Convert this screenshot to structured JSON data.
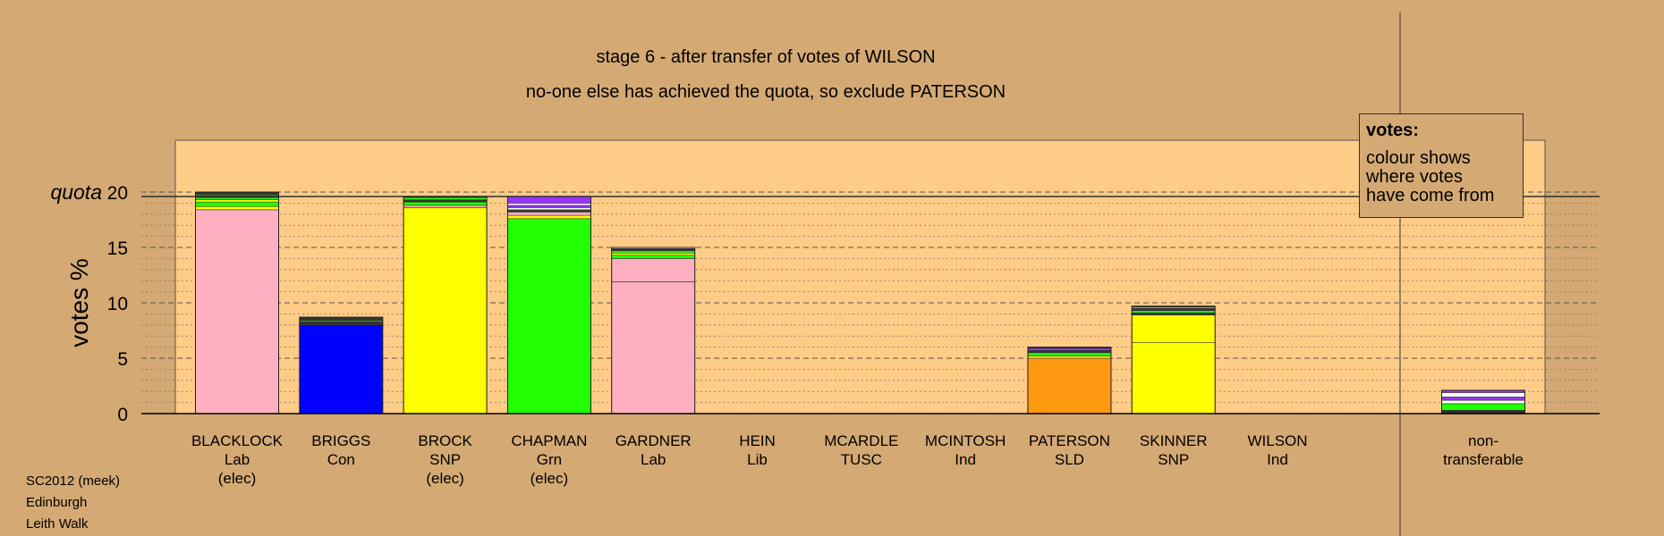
{
  "title": "stage 6 - after transfer of votes of WILSON",
  "subtitle": "no-one else has achieved the quota, so exclude PATERSON",
  "footer": [
    "SC2012 (meek)",
    "Edinburgh",
    "Leith Walk"
  ],
  "legend": {
    "title": "votes:",
    "body": "colour shows\nwhere votes\nhave come from"
  },
  "quota_label": "quota",
  "colors": {
    "background": "#D4A973",
    "plot_area": "#FFCC88",
    "Lab": "#FFB0C0",
    "Con": "#0000FF",
    "SNP": "#FFFF00",
    "Grn": "#22FF00",
    "SLD": "#FF9910",
    "purple": "#9933FF",
    "dark": "#333333",
    "white": "#FFFFFF"
  },
  "chart_data": {
    "type": "bar",
    "stacked": true,
    "ylabel": "votes %",
    "ylim": [
      0,
      20
    ],
    "yticks": [
      0,
      5,
      10,
      15,
      20
    ],
    "quota": 19.6,
    "grid": "dotted minor lines every 1%, dashed major lines every 5%",
    "candidates": [
      {
        "name": "BLACKLOCK",
        "party": "Lab",
        "note": "(elec)",
        "segments": [
          {
            "color": "#FFB0C0",
            "value": 18.4
          },
          {
            "color": "#FFFF00",
            "value": 0.3
          },
          {
            "color": "#22FF00",
            "value": 0.4
          },
          {
            "color": "#FFFF00",
            "value": 0.2
          },
          {
            "color": "#22FF00",
            "value": 0.2
          },
          {
            "color": "#333333",
            "value": 0.2
          },
          {
            "color": "#22FF00",
            "value": 0.1
          },
          {
            "color": "#333333",
            "value": 0.2
          }
        ]
      },
      {
        "name": "BRIGGS",
        "party": "Con",
        "note": "",
        "segments": [
          {
            "color": "#0000FF",
            "value": 8.0
          },
          {
            "color": "#333333",
            "value": 0.3
          },
          {
            "color": "#22FF00",
            "value": 0.1
          },
          {
            "color": "#333333",
            "value": 0.3
          }
        ]
      },
      {
        "name": "BROCK",
        "party": "SNP",
        "note": "(elec)",
        "segments": [
          {
            "color": "#FFFF00",
            "value": 18.6
          },
          {
            "color": "#FFB0C0",
            "value": 0.2
          },
          {
            "color": "#22FF00",
            "value": 0.3
          },
          {
            "color": "#333333",
            "value": 0.2
          },
          {
            "color": "#22FF00",
            "value": 0.2
          },
          {
            "color": "#333333",
            "value": 0.1
          }
        ]
      },
      {
        "name": "CHAPMAN",
        "party": "Grn",
        "note": "(elec)",
        "segments": [
          {
            "color": "#22FF00",
            "value": 17.6
          },
          {
            "color": "#FFFF00",
            "value": 0.3
          },
          {
            "color": "#FFB0C0",
            "value": 0.3
          },
          {
            "color": "#333333",
            "value": 0.2
          },
          {
            "color": "#FFFFFF",
            "value": 0.2
          },
          {
            "color": "#9933FF",
            "value": 0.2
          },
          {
            "color": "#FFFFFF",
            "value": 0.2
          },
          {
            "color": "#9933FF",
            "value": 0.6
          }
        ]
      },
      {
        "name": "GARDNER",
        "party": "Lab",
        "note": "",
        "segments": [
          {
            "color": "#FFB0C0",
            "value": 11.9
          },
          {
            "color": "#FFB0C0",
            "value": 2.1
          },
          {
            "color": "#22FF00",
            "value": 0.3
          },
          {
            "color": "#FFFF00",
            "value": 0.2
          },
          {
            "color": "#22FF00",
            "value": 0.2
          },
          {
            "color": "#333333",
            "value": 0.2
          },
          {
            "color": "#FFFFFF",
            "value": 0.1
          }
        ]
      },
      {
        "name": "HEIN",
        "party": "Lib",
        "note": "",
        "segments": []
      },
      {
        "name": "MCARDLE",
        "party": "TUSC",
        "note": "",
        "segments": []
      },
      {
        "name": "MCINTOSH",
        "party": "Ind",
        "note": "",
        "segments": []
      },
      {
        "name": "PATERSON",
        "party": "SLD",
        "note": "",
        "segments": [
          {
            "color": "#FF9910",
            "value": 5.0
          },
          {
            "color": "#FFFF00",
            "value": 0.2
          },
          {
            "color": "#22FF00",
            "value": 0.3
          },
          {
            "color": "#333333",
            "value": 0.2
          },
          {
            "color": "#9933FF",
            "value": 0.2
          },
          {
            "color": "#333333",
            "value": 0.1
          }
        ]
      },
      {
        "name": "SKINNER",
        "party": "SNP",
        "note": "",
        "segments": [
          {
            "color": "#FFFF00",
            "value": 6.4
          },
          {
            "color": "#FFFF00",
            "value": 2.5
          },
          {
            "color": "#333333",
            "value": 0.2
          },
          {
            "color": "#22FF00",
            "value": 0.2
          },
          {
            "color": "#333333",
            "value": 0.2
          },
          {
            "color": "#FFFFFF",
            "value": 0.1
          },
          {
            "color": "#333333",
            "value": 0.1
          }
        ]
      },
      {
        "name": "WILSON",
        "party": "Ind",
        "note": "",
        "segments": []
      }
    ],
    "nontransferable": {
      "label_line1": "non-",
      "label_line2": "transferable",
      "segments": [
        {
          "color": "#333333",
          "value": 0.3
        },
        {
          "color": "#22FF00",
          "value": 0.6
        },
        {
          "color": "#FFFFFF",
          "value": 0.3
        },
        {
          "color": "#9933FF",
          "value": 0.3
        },
        {
          "color": "#FFFFFF",
          "value": 0.4
        },
        {
          "color": "#9933FF",
          "value": 0.2
        }
      ]
    }
  }
}
